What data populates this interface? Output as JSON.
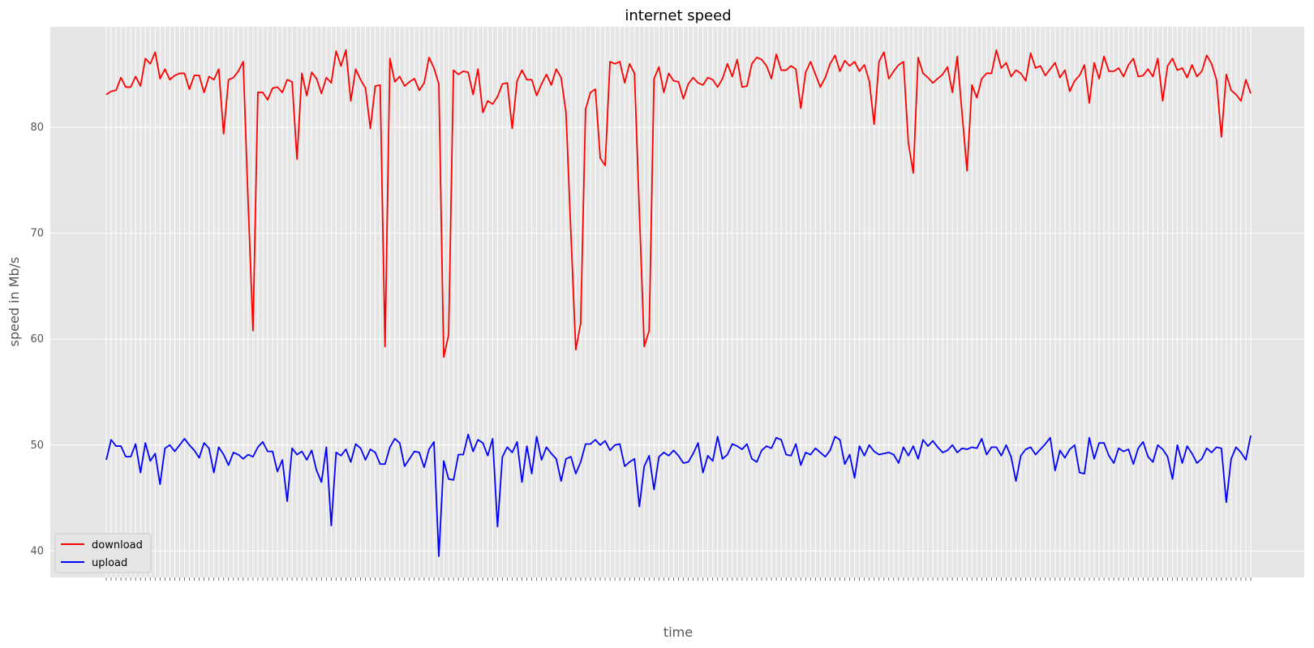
{
  "chart_data": {
    "type": "line",
    "title": "internet speed",
    "xlabel": "time",
    "ylabel": "speed in Mb/s",
    "ylim": [
      37.5,
      89.5
    ],
    "yticks": [
      40,
      50,
      60,
      70,
      80
    ],
    "grid": true,
    "legend_position": "bottom-left",
    "background_color": "#e5e5e5",
    "series": [
      {
        "name": "download",
        "color": "#ff0000",
        "values": [
          83.1,
          83.4,
          83.5,
          84.7,
          83.8,
          83.8,
          84.8,
          83.9,
          86.5,
          86.0,
          87.1,
          84.6,
          85.5,
          84.5,
          84.9,
          85.1,
          85.1,
          83.6,
          84.9,
          84.9,
          83.3,
          84.8,
          84.5,
          85.5,
          79.4,
          84.5,
          84.7,
          85.3,
          86.2,
          73.0,
          60.8,
          83.3,
          83.3,
          82.6,
          83.7,
          83.8,
          83.3,
          84.5,
          84.3,
          77.0,
          85.1,
          83.0,
          85.2,
          84.6,
          83.2,
          84.7,
          84.2,
          87.2,
          85.8,
          87.3,
          82.5,
          85.5,
          84.5,
          83.7,
          79.9,
          83.9,
          84.0,
          59.3,
          86.5,
          84.3,
          84.8,
          83.9,
          84.3,
          84.6,
          83.5,
          84.2,
          86.6,
          85.6,
          84.1,
          58.3,
          60.4,
          85.4,
          85.0,
          85.3,
          85.2,
          83.1,
          85.5,
          81.4,
          82.5,
          82.2,
          82.9,
          84.1,
          84.2,
          79.9,
          84.4,
          85.4,
          84.5,
          84.5,
          83.0,
          84.1,
          85.0,
          84.0,
          85.5,
          84.7,
          81.4,
          70.0,
          59.0,
          61.5,
          81.7,
          83.3,
          83.6,
          77.1,
          76.4,
          86.2,
          86.0,
          86.2,
          84.2,
          86.0,
          85.1,
          72.0,
          59.3,
          60.8,
          84.6,
          85.7,
          83.3,
          85.1,
          84.4,
          84.3,
          82.7,
          84.1,
          84.7,
          84.2,
          84.0,
          84.7,
          84.5,
          83.8,
          84.6,
          86.0,
          84.8,
          86.4,
          83.8,
          83.9,
          86.0,
          86.6,
          86.4,
          85.8,
          84.6,
          86.9,
          85.4,
          85.4,
          85.8,
          85.5,
          81.8,
          85.2,
          86.2,
          85.0,
          83.8,
          84.7,
          86.0,
          86.8,
          85.3,
          86.3,
          85.8,
          86.2,
          85.3,
          85.9,
          84.4,
          80.3,
          86.2,
          87.1,
          84.6,
          85.3,
          85.9,
          86.2,
          78.5,
          75.7,
          86.6,
          85.1,
          84.7,
          84.2,
          84.6,
          85.0,
          85.7,
          83.3,
          86.7,
          81.2,
          75.9,
          84.0,
          82.8,
          84.6,
          85.1,
          85.1,
          87.3,
          85.6,
          86.1,
          84.8,
          85.4,
          85.1,
          84.4,
          87.0,
          85.6,
          85.8,
          84.9,
          85.5,
          86.1,
          84.7,
          85.4,
          83.4,
          84.4,
          84.9,
          85.9,
          82.3,
          86.1,
          84.6,
          86.7,
          85.3,
          85.3,
          85.6,
          84.8,
          85.9,
          86.5,
          84.8,
          84.9,
          85.5,
          84.8,
          86.5,
          82.5,
          85.8,
          86.5,
          85.4,
          85.6,
          84.7,
          85.9,
          84.8,
          85.3,
          86.8,
          86.0,
          84.5,
          79.1,
          85.0,
          83.5,
          83.1,
          82.5,
          84.5,
          83.2
        ]
      },
      {
        "name": "upload",
        "color": "#0000ff",
        "values": [
          48.6,
          50.5,
          49.9,
          49.9,
          48.9,
          48.9,
          50.1,
          47.4,
          50.2,
          48.5,
          49.2,
          46.3,
          49.7,
          50.0,
          49.4,
          50.0,
          50.6,
          50.0,
          49.5,
          48.8,
          50.2,
          49.7,
          47.4,
          49.8,
          49.1,
          48.1,
          49.3,
          49.1,
          48.7,
          49.1,
          48.9,
          49.8,
          50.3,
          49.4,
          49.4,
          47.5,
          48.6,
          44.7,
          49.7,
          49.1,
          49.4,
          48.6,
          49.5,
          47.6,
          46.5,
          49.8,
          42.4,
          49.3,
          49.0,
          49.6,
          48.4,
          50.1,
          49.7,
          48.6,
          49.6,
          49.3,
          48.2,
          48.2,
          49.8,
          50.6,
          50.2,
          48.0,
          48.7,
          49.4,
          49.3,
          47.9,
          49.6,
          50.3,
          39.5,
          48.5,
          46.8,
          46.7,
          49.1,
          49.1,
          51.0,
          49.4,
          50.5,
          50.2,
          49.0,
          50.6,
          42.3,
          48.9,
          49.8,
          49.3,
          50.3,
          46.5,
          49.9,
          47.3,
          50.8,
          48.6,
          49.8,
          49.2,
          48.7,
          46.6,
          48.7,
          48.9,
          47.3,
          48.4,
          50.1,
          50.1,
          50.5,
          50.0,
          50.4,
          49.5,
          50.0,
          50.1,
          48.0,
          48.4,
          48.7,
          44.2,
          48.0,
          49.0,
          45.8,
          48.9,
          49.3,
          49.0,
          49.5,
          49.0,
          48.3,
          48.4,
          49.2,
          50.2,
          47.4,
          49.0,
          48.5,
          50.8,
          48.7,
          49.1,
          50.1,
          49.9,
          49.6,
          50.1,
          48.7,
          48.4,
          49.5,
          49.9,
          49.7,
          50.7,
          50.5,
          49.1,
          49.0,
          50.1,
          48.1,
          49.3,
          49.1,
          49.7,
          49.3,
          48.9,
          49.5,
          50.8,
          50.5,
          48.2,
          49.1,
          46.9,
          49.9,
          49.0,
          50.0,
          49.4,
          49.1,
          49.2,
          49.3,
          49.1,
          48.3,
          49.8,
          49.0,
          49.9,
          48.7,
          50.5,
          49.9,
          50.4,
          49.8,
          49.3,
          49.5,
          50.0,
          49.3,
          49.7,
          49.6,
          49.8,
          49.7,
          50.6,
          49.1,
          49.8,
          49.8,
          49.0,
          50.0,
          48.9,
          46.6,
          49.0,
          49.6,
          49.8,
          49.1,
          49.6,
          50.1,
          50.7,
          47.6,
          49.5,
          48.8,
          49.6,
          50.0,
          47.4,
          47.3,
          50.7,
          48.7,
          50.2,
          50.2,
          49.0,
          48.3,
          49.7,
          49.4,
          49.6,
          48.2,
          49.7,
          50.3,
          48.9,
          48.4,
          50.0,
          49.6,
          48.9,
          46.8,
          50.0,
          48.3,
          49.9,
          49.2,
          48.3,
          48.7,
          49.7,
          49.3,
          49.8,
          49.7,
          44.6,
          48.7,
          49.8,
          49.3,
          48.6,
          50.9
        ]
      }
    ]
  }
}
